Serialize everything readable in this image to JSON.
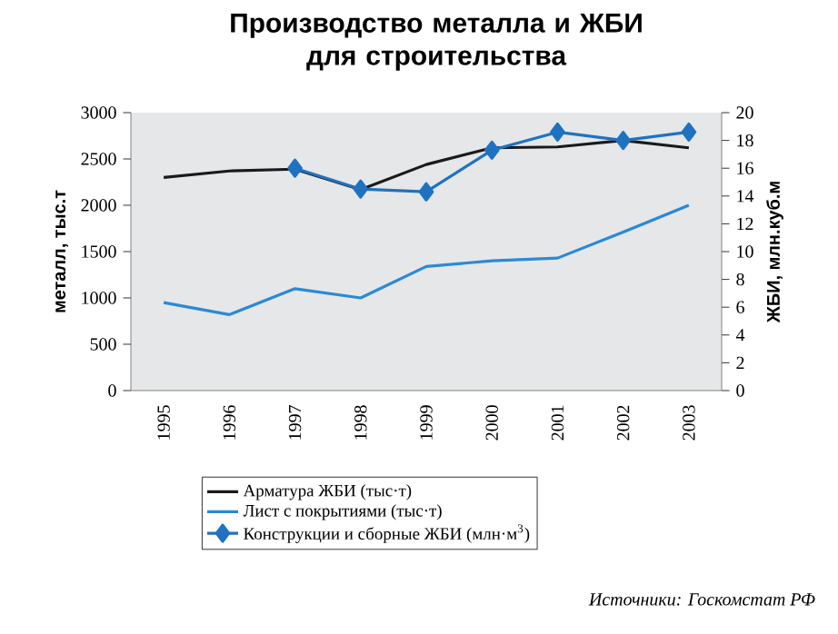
{
  "chart_data": {
    "type": "line",
    "title": "Производство металла и ЖБИ\nдля строительства",
    "ylabel": "металл, тыс.т",
    "y2label": "ЖБИ, млн.куб.м",
    "categories": [
      "1995",
      "1996",
      "1997",
      "1998",
      "1999",
      "2000",
      "2001",
      "2002",
      "2003"
    ],
    "series": [
      {
        "name": "Арматура ЖБИ (тыс·т)",
        "color": "#1a1a1a",
        "values": [
          2300,
          2370,
          2390,
          2170,
          2440,
          2620,
          2630,
          2700,
          2620
        ]
      },
      {
        "name": "Лист с покрытиями (тыс·т)",
        "color": "#2a8ad5",
        "values": [
          950,
          820,
          1100,
          1000,
          1340,
          1400,
          1430,
          1710,
          2000
        ]
      },
      {
        "name": "Конструкции и сборные ЖБИ (млн·м$^{3}$)",
        "color": "#1f72c0",
        "axis": "y2",
        "marker": "diamond",
        "values": [
          null,
          null,
          16.0,
          14.5,
          14.3,
          17.3,
          18.6,
          18.0,
          18.6
        ]
      }
    ],
    "ylim": [
      0,
      3000
    ],
    "yticks": [
      0,
      500,
      1000,
      1500,
      2000,
      2500,
      3000
    ],
    "y2lim": [
      0,
      20
    ],
    "y2ticks": [
      0,
      2,
      4,
      6,
      8,
      10,
      12,
      14,
      16,
      18,
      20
    ],
    "legend": "bottom",
    "annotations": [
      "Источники: Госкомстат РФ"
    ]
  }
}
